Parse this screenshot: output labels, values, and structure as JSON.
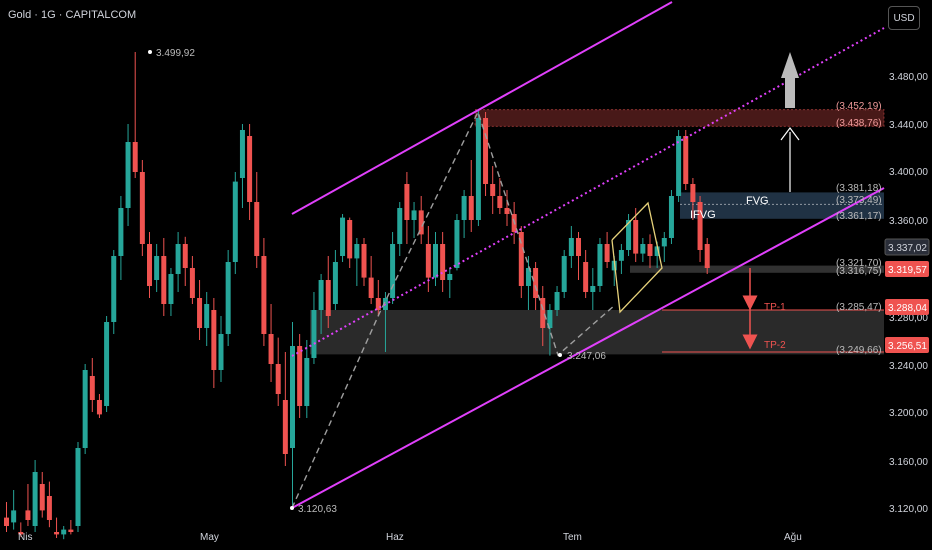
{
  "header": {
    "title": "Gold · 1G · CAPITALCOM"
  },
  "currency_button": "USD",
  "colors": {
    "up": "#26a69a",
    "down": "#ef5350",
    "channel": "#e040fb",
    "bg": "#000000"
  },
  "chart_data": {
    "type": "candlestick",
    "title": "Gold · 1G · CAPITALCOM",
    "ylim": [
      3100,
      3520
    ],
    "y_ticks": [
      "3.120,00",
      "3.160,00",
      "3.200,00",
      "3.240,00",
      "3.280,00",
      "3.360,00",
      "3.400,00",
      "3.440,00",
      "3.480,00"
    ],
    "x_ticks": [
      "Nis",
      "May",
      "Haz",
      "Tem",
      "Ağu"
    ],
    "annotations": {
      "high_label": "3.499,92",
      "low_label": "3.120,63",
      "pivot_label": "3.247,06",
      "fvg": "FVG",
      "ifvg": "IFVG",
      "tp1": "TP-1",
      "tp2": "TP-2"
    },
    "zone_labels": [
      "(3.452,19)",
      "(3.438,76)",
      "(3.381,18)",
      "(3.373,49)",
      "(3.361,17)",
      "(3.321,70)",
      "(3.316,75)",
      "(3.285,47)",
      "(3.249,66)"
    ],
    "price_tags": [
      {
        "label": "3.337,02",
        "kind": "gray"
      },
      {
        "label": "3.319,57",
        "kind": "red"
      },
      {
        "label": "3.288,04",
        "kind": "red"
      },
      {
        "label": "3.256,51",
        "kind": "red"
      }
    ],
    "candles": [
      {
        "o": 3112,
        "h": 3125,
        "l": 3100,
        "c": 3105
      },
      {
        "o": 3108,
        "h": 3135,
        "l": 3102,
        "c": 3118
      },
      {
        "o": 3100,
        "h": 3108,
        "l": 3096,
        "c": 3098
      },
      {
        "o": 3118,
        "h": 3140,
        "l": 3105,
        "c": 3110
      },
      {
        "o": 3105,
        "h": 3160,
        "l": 3100,
        "c": 3150
      },
      {
        "o": 3140,
        "h": 3150,
        "l": 3112,
        "c": 3118
      },
      {
        "o": 3130,
        "h": 3142,
        "l": 3104,
        "c": 3110
      },
      {
        "o": 3100,
        "h": 3112,
        "l": 3095,
        "c": 3098
      },
      {
        "o": 3098,
        "h": 3105,
        "l": 3094,
        "c": 3102
      },
      {
        "o": 3102,
        "h": 3110,
        "l": 3098,
        "c": 3100
      },
      {
        "o": 3105,
        "h": 3175,
        "l": 3100,
        "c": 3170
      },
      {
        "o": 3170,
        "h": 3240,
        "l": 3165,
        "c": 3235
      },
      {
        "o": 3230,
        "h": 3245,
        "l": 3200,
        "c": 3210
      },
      {
        "o": 3210,
        "h": 3215,
        "l": 3195,
        "c": 3198
      },
      {
        "o": 3205,
        "h": 3280,
        "l": 3200,
        "c": 3275
      },
      {
        "o": 3275,
        "h": 3335,
        "l": 3265,
        "c": 3330
      },
      {
        "o": 3330,
        "h": 3380,
        "l": 3310,
        "c": 3370
      },
      {
        "o": 3370,
        "h": 3440,
        "l": 3355,
        "c": 3425
      },
      {
        "o": 3425,
        "h": 3500,
        "l": 3395,
        "c": 3400
      },
      {
        "o": 3400,
        "h": 3410,
        "l": 3330,
        "c": 3340
      },
      {
        "o": 3340,
        "h": 3350,
        "l": 3295,
        "c": 3305
      },
      {
        "o": 3310,
        "h": 3340,
        "l": 3300,
        "c": 3330
      },
      {
        "o": 3330,
        "h": 3345,
        "l": 3280,
        "c": 3290
      },
      {
        "o": 3290,
        "h": 3320,
        "l": 3280,
        "c": 3315
      },
      {
        "o": 3315,
        "h": 3350,
        "l": 3300,
        "c": 3340
      },
      {
        "o": 3340,
        "h": 3346,
        "l": 3305,
        "c": 3320
      },
      {
        "o": 3320,
        "h": 3330,
        "l": 3290,
        "c": 3295
      },
      {
        "o": 3295,
        "h": 3310,
        "l": 3260,
        "c": 3270
      },
      {
        "o": 3270,
        "h": 3300,
        "l": 3255,
        "c": 3290
      },
      {
        "o": 3285,
        "h": 3295,
        "l": 3220,
        "c": 3235
      },
      {
        "o": 3235,
        "h": 3280,
        "l": 3225,
        "c": 3265
      },
      {
        "o": 3265,
        "h": 3335,
        "l": 3255,
        "c": 3325
      },
      {
        "o": 3325,
        "h": 3400,
        "l": 3315,
        "c": 3392
      },
      {
        "o": 3395,
        "h": 3440,
        "l": 3370,
        "c": 3435
      },
      {
        "o": 3430,
        "h": 3440,
        "l": 3360,
        "c": 3375
      },
      {
        "o": 3375,
        "h": 3400,
        "l": 3320,
        "c": 3330
      },
      {
        "o": 3330,
        "h": 3345,
        "l": 3255,
        "c": 3265
      },
      {
        "o": 3265,
        "h": 3290,
        "l": 3225,
        "c": 3240
      },
      {
        "o": 3240,
        "h": 3262,
        "l": 3205,
        "c": 3215
      },
      {
        "o": 3210,
        "h": 3250,
        "l": 3155,
        "c": 3165
      },
      {
        "o": 3170,
        "h": 3275,
        "l": 3120,
        "c": 3255
      },
      {
        "o": 3255,
        "h": 3265,
        "l": 3195,
        "c": 3205
      },
      {
        "o": 3205,
        "h": 3260,
        "l": 3195,
        "c": 3245
      },
      {
        "o": 3245,
        "h": 3300,
        "l": 3240,
        "c": 3285
      },
      {
        "o": 3285,
        "h": 3315,
        "l": 3265,
        "c": 3310
      },
      {
        "o": 3310,
        "h": 3330,
        "l": 3270,
        "c": 3280
      },
      {
        "o": 3290,
        "h": 3335,
        "l": 3285,
        "c": 3325
      },
      {
        "o": 3330,
        "h": 3365,
        "l": 3325,
        "c": 3362
      },
      {
        "o": 3360,
        "h": 3362,
        "l": 3320,
        "c": 3328
      },
      {
        "o": 3328,
        "h": 3345,
        "l": 3305,
        "c": 3340
      },
      {
        "o": 3340,
        "h": 3345,
        "l": 3305,
        "c": 3312
      },
      {
        "o": 3312,
        "h": 3330,
        "l": 3290,
        "c": 3295
      },
      {
        "o": 3295,
        "h": 3310,
        "l": 3280,
        "c": 3285
      },
      {
        "o": 3285,
        "h": 3300,
        "l": 3250,
        "c": 3295
      },
      {
        "o": 3295,
        "h": 3350,
        "l": 3290,
        "c": 3340
      },
      {
        "o": 3340,
        "h": 3375,
        "l": 3330,
        "c": 3370
      },
      {
        "o": 3390,
        "h": 3400,
        "l": 3340,
        "c": 3360
      },
      {
        "o": 3360,
        "h": 3375,
        "l": 3345,
        "c": 3368
      },
      {
        "o": 3368,
        "h": 3380,
        "l": 3340,
        "c": 3348
      },
      {
        "o": 3340,
        "h": 3355,
        "l": 3300,
        "c": 3312
      },
      {
        "o": 3312,
        "h": 3350,
        "l": 3305,
        "c": 3340
      },
      {
        "o": 3340,
        "h": 3350,
        "l": 3300,
        "c": 3310
      },
      {
        "o": 3310,
        "h": 3320,
        "l": 3295,
        "c": 3315
      },
      {
        "o": 3320,
        "h": 3365,
        "l": 3318,
        "c": 3360
      },
      {
        "o": 3360,
        "h": 3385,
        "l": 3345,
        "c": 3380
      },
      {
        "o": 3380,
        "h": 3410,
        "l": 3350,
        "c": 3360
      },
      {
        "o": 3360,
        "h": 3452,
        "l": 3355,
        "c": 3445
      },
      {
        "o": 3445,
        "h": 3450,
        "l": 3380,
        "c": 3390
      },
      {
        "o": 3390,
        "h": 3405,
        "l": 3365,
        "c": 3380
      },
      {
        "o": 3380,
        "h": 3395,
        "l": 3365,
        "c": 3370
      },
      {
        "o": 3370,
        "h": 3385,
        "l": 3355,
        "c": 3365
      },
      {
        "o": 3365,
        "h": 3375,
        "l": 3340,
        "c": 3350
      },
      {
        "o": 3350,
        "h": 3355,
        "l": 3295,
        "c": 3305
      },
      {
        "o": 3305,
        "h": 3330,
        "l": 3285,
        "c": 3320
      },
      {
        "o": 3320,
        "h": 3325,
        "l": 3285,
        "c": 3295
      },
      {
        "o": 3295,
        "h": 3305,
        "l": 3255,
        "c": 3270
      },
      {
        "o": 3270,
        "h": 3290,
        "l": 3247,
        "c": 3285
      },
      {
        "o": 3285,
        "h": 3305,
        "l": 3280,
        "c": 3300
      },
      {
        "o": 3300,
        "h": 3335,
        "l": 3295,
        "c": 3330
      },
      {
        "o": 3330,
        "h": 3355,
        "l": 3320,
        "c": 3345
      },
      {
        "o": 3345,
        "h": 3350,
        "l": 3310,
        "c": 3330
      },
      {
        "o": 3325,
        "h": 3335,
        "l": 3295,
        "c": 3300
      },
      {
        "o": 3300,
        "h": 3320,
        "l": 3285,
        "c": 3305
      },
      {
        "o": 3305,
        "h": 3345,
        "l": 3300,
        "c": 3340
      },
      {
        "o": 3340,
        "h": 3350,
        "l": 3320,
        "c": 3325
      },
      {
        "o": 3318,
        "h": 3330,
        "l": 3305,
        "c": 3326
      },
      {
        "o": 3326,
        "h": 3340,
        "l": 3315,
        "c": 3335
      },
      {
        "o": 3335,
        "h": 3365,
        "l": 3330,
        "c": 3360
      },
      {
        "o": 3360,
        "h": 3370,
        "l": 3325,
        "c": 3332
      },
      {
        "o": 3332,
        "h": 3345,
        "l": 3325,
        "c": 3340
      },
      {
        "o": 3340,
        "h": 3348,
        "l": 3320,
        "c": 3330
      },
      {
        "o": 3330,
        "h": 3342,
        "l": 3320,
        "c": 3338
      },
      {
        "o": 3338,
        "h": 3350,
        "l": 3325,
        "c": 3345
      },
      {
        "o": 3345,
        "h": 3385,
        "l": 3340,
        "c": 3380
      },
      {
        "o": 3380,
        "h": 3435,
        "l": 3375,
        "c": 3430
      },
      {
        "o": 3430,
        "h": 3435,
        "l": 3385,
        "c": 3390
      },
      {
        "o": 3390,
        "h": 3395,
        "l": 3360,
        "c": 3375
      },
      {
        "o": 3375,
        "h": 3380,
        "l": 3325,
        "c": 3335
      },
      {
        "o": 3340,
        "h": 3345,
        "l": 3315,
        "c": 3320
      }
    ]
  }
}
